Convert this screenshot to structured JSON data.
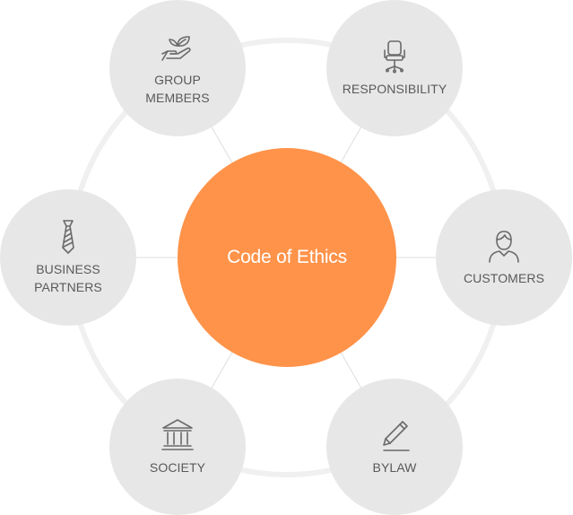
{
  "diagram": {
    "center": {
      "label": "Code of Ethics"
    },
    "nodes": [
      {
        "id": "group",
        "label": "GROUP\nMEMBERS",
        "icon": "hand-leaf-icon"
      },
      {
        "id": "resp",
        "label": "RESPONSIBILITY",
        "icon": "office-chair-icon"
      },
      {
        "id": "biz",
        "label": "BUSINESS\nPARTNERS",
        "icon": "necktie-icon"
      },
      {
        "id": "cust",
        "label": "CUSTOMERS",
        "icon": "person-icon"
      },
      {
        "id": "soc",
        "label": "SOCIETY",
        "icon": "bank-building-icon"
      },
      {
        "id": "bylaw",
        "label": "BYLAW",
        "icon": "pencil-icon"
      }
    ]
  },
  "colors": {
    "center_fill": "#FF934A",
    "node_fill": "#E7E7E7",
    "ring_stroke": "#F0F0F0",
    "connector": "#DEDEDE",
    "text": "#595959",
    "icon": "#6A6A6A"
  }
}
